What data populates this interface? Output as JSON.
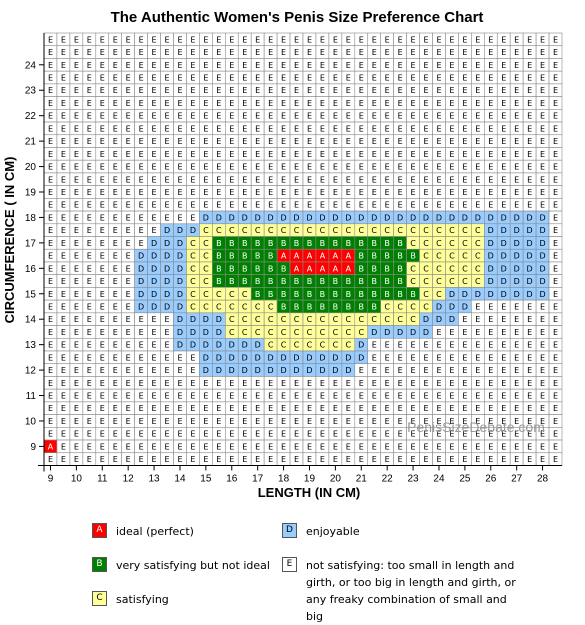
{
  "chart_data": {
    "type": "heatmap",
    "title": "The Authentic Women's Penis Size Preference Chart",
    "xlabel": "LENGTH  (IN CM)",
    "ylabel": "CIRCUMFERENCE ( IN CM)",
    "watermark": "PenisSizeDebate.com",
    "x_range": [
      9,
      28.5
    ],
    "y_range": [
      8.5,
      25
    ],
    "cell_step": 0.5,
    "x_ticks": [
      9,
      10,
      11,
      12,
      13,
      14,
      15,
      16,
      17,
      18,
      19,
      20,
      21,
      22,
      23,
      24,
      25,
      26,
      27,
      28
    ],
    "y_ticks": [
      9,
      10,
      11,
      12,
      13,
      14,
      15,
      16,
      17,
      18,
      19,
      20,
      21,
      22,
      23,
      24
    ],
    "categories": {
      "A": {
        "label": "ideal (perfect)",
        "color": "#ff0000",
        "text_color": "#ffffff"
      },
      "B": {
        "label": "very satisfying but not ideal",
        "color": "#008000",
        "text_color": "#ffffff"
      },
      "C": {
        "label": "satisfying",
        "color": "#ffff99",
        "text_color": "#000000"
      },
      "D": {
        "label": "enjoyable",
        "color": "#99ccff",
        "text_color": "#000000"
      },
      "E": {
        "label": "not satisfying: too small in length and girth, or too big in length and girth, or any freaky combination of small and big",
        "color": "#ffffff",
        "text_color": "#000000"
      }
    },
    "default_category": "E",
    "runs": [
      {
        "y": 9,
        "x_from": 9,
        "x_to": 9,
        "cat": "A"
      },
      {
        "y": 12,
        "x_from": 15,
        "x_to": 20.5,
        "cat": "D"
      },
      {
        "y": 12.5,
        "x_from": 15,
        "x_to": 21,
        "cat": "D"
      },
      {
        "y": 13,
        "x_from": 14,
        "x_to": 21,
        "cat": "D"
      },
      {
        "y": 13,
        "x_from": 17.5,
        "x_to": 20.5,
        "cat": "C"
      },
      {
        "y": 13.5,
        "x_from": 14,
        "x_to": 23.5,
        "cat": "D"
      },
      {
        "y": 13.5,
        "x_from": 16,
        "x_to": 21,
        "cat": "C"
      },
      {
        "y": 14,
        "x_from": 14,
        "x_to": 24.5,
        "cat": "D"
      },
      {
        "y": 14,
        "x_from": 16,
        "x_to": 23,
        "cat": "C"
      },
      {
        "y": 14.5,
        "x_from": 12.5,
        "x_to": 25,
        "cat": "D"
      },
      {
        "y": 14.5,
        "x_from": 14.5,
        "x_to": 23.5,
        "cat": "C"
      },
      {
        "y": 14.5,
        "x_from": 18,
        "x_to": 21.5,
        "cat": "B"
      },
      {
        "y": 15,
        "x_from": 12.5,
        "x_to": 28,
        "cat": "D"
      },
      {
        "y": 15,
        "x_from": 14.5,
        "x_to": 24,
        "cat": "C"
      },
      {
        "y": 15,
        "x_from": 17,
        "x_to": 23,
        "cat": "B"
      },
      {
        "y": 15.5,
        "x_from": 12.5,
        "x_to": 28,
        "cat": "D"
      },
      {
        "y": 15.5,
        "x_from": 14.5,
        "x_to": 25.5,
        "cat": "C"
      },
      {
        "y": 15.5,
        "x_from": 15.5,
        "x_to": 22.5,
        "cat": "B"
      },
      {
        "y": 16,
        "x_from": 12.5,
        "x_to": 28,
        "cat": "D"
      },
      {
        "y": 16,
        "x_from": 14.5,
        "x_to": 25.5,
        "cat": "C"
      },
      {
        "y": 16,
        "x_from": 15.5,
        "x_to": 22.5,
        "cat": "B"
      },
      {
        "y": 16,
        "x_from": 18.5,
        "x_to": 20.5,
        "cat": "A"
      },
      {
        "y": 16.5,
        "x_from": 12.5,
        "x_to": 28,
        "cat": "D"
      },
      {
        "y": 16.5,
        "x_from": 14.5,
        "x_to": 25.5,
        "cat": "C"
      },
      {
        "y": 16.5,
        "x_from": 15.5,
        "x_to": 23,
        "cat": "B"
      },
      {
        "y": 16.5,
        "x_from": 18,
        "x_to": 20.5,
        "cat": "A"
      },
      {
        "y": 17,
        "x_from": 13,
        "x_to": 28,
        "cat": "D"
      },
      {
        "y": 17,
        "x_from": 14.5,
        "x_to": 25.5,
        "cat": "C"
      },
      {
        "y": 17,
        "x_from": 15.5,
        "x_to": 22.5,
        "cat": "B"
      },
      {
        "y": 17.5,
        "x_from": 13.5,
        "x_to": 28,
        "cat": "D"
      },
      {
        "y": 17.5,
        "x_from": 15,
        "x_to": 25.5,
        "cat": "C"
      },
      {
        "y": 18,
        "x_from": 15,
        "x_to": 28,
        "cat": "D"
      }
    ]
  },
  "legend": [
    {
      "key": "A",
      "label": "ideal (perfect)"
    },
    {
      "key": "D",
      "label": "enjoyable"
    },
    {
      "key": "B",
      "label": "very satisfying but not ideal"
    },
    {
      "key": "E",
      "label": "not satisfying: too small in length and girth, or too big in length and girth, or any freaky combination of small and big"
    },
    {
      "key": "C",
      "label": "satisfying"
    }
  ]
}
